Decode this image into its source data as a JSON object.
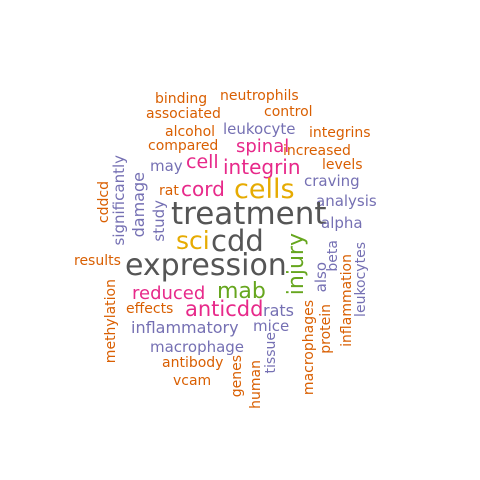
{
  "palette": {
    "orange": "#d95f02",
    "purple": "#7570b3",
    "magenta": "#e7298a",
    "green": "#66a61e",
    "gold": "#e6ab02",
    "gray": "#555555"
  },
  "words": [
    {
      "text": "binding",
      "color": "orange"
    },
    {
      "text": "neutrophils",
      "color": "orange"
    },
    {
      "text": "associated",
      "color": "orange"
    },
    {
      "text": "control",
      "color": "orange"
    },
    {
      "text": "alcohol",
      "color": "orange"
    },
    {
      "text": "leukocyte",
      "color": "purple"
    },
    {
      "text": "integrins",
      "color": "orange"
    },
    {
      "text": "compared",
      "color": "orange"
    },
    {
      "text": "spinal",
      "color": "magenta"
    },
    {
      "text": "increased",
      "color": "orange"
    },
    {
      "text": "may",
      "color": "purple"
    },
    {
      "text": "cell",
      "color": "magenta"
    },
    {
      "text": "integrin",
      "color": "magenta"
    },
    {
      "text": "levels",
      "color": "orange"
    },
    {
      "text": "craving",
      "color": "purple"
    },
    {
      "text": "rat",
      "color": "orange"
    },
    {
      "text": "cord",
      "color": "magenta"
    },
    {
      "text": "cells",
      "color": "gold"
    },
    {
      "text": "analysis",
      "color": "purple"
    },
    {
      "text": "treatment",
      "color": "gray"
    },
    {
      "text": "alpha",
      "color": "purple"
    },
    {
      "text": "sci",
      "color": "gold"
    },
    {
      "text": "cdd",
      "color": "gray"
    },
    {
      "text": "results",
      "color": "orange"
    },
    {
      "text": "expression",
      "color": "gray"
    },
    {
      "text": "reduced",
      "color": "magenta"
    },
    {
      "text": "mab",
      "color": "green"
    },
    {
      "text": "effects",
      "color": "orange"
    },
    {
      "text": "anticdd",
      "color": "magenta"
    },
    {
      "text": "rats",
      "color": "purple"
    },
    {
      "text": "inflammatory",
      "color": "purple"
    },
    {
      "text": "mice",
      "color": "purple"
    },
    {
      "text": "macrophage",
      "color": "purple"
    },
    {
      "text": "antibody",
      "color": "orange"
    },
    {
      "text": "vcam",
      "color": "orange"
    },
    {
      "text": "cddcd",
      "color": "orange"
    },
    {
      "text": "significantly",
      "color": "purple"
    },
    {
      "text": "damage",
      "color": "purple"
    },
    {
      "text": "study",
      "color": "purple"
    },
    {
      "text": "methylation",
      "color": "orange"
    },
    {
      "text": "injury",
      "color": "green"
    },
    {
      "text": "also",
      "color": "purple"
    },
    {
      "text": "beta",
      "color": "purple"
    },
    {
      "text": "leukocytes",
      "color": "purple"
    },
    {
      "text": "inflammation",
      "color": "orange"
    },
    {
      "text": "protein",
      "color": "orange"
    },
    {
      "text": "macrophages",
      "color": "orange"
    },
    {
      "text": "tissue",
      "color": "purple"
    },
    {
      "text": "human",
      "color": "orange"
    },
    {
      "text": "genes",
      "color": "orange"
    }
  ]
}
